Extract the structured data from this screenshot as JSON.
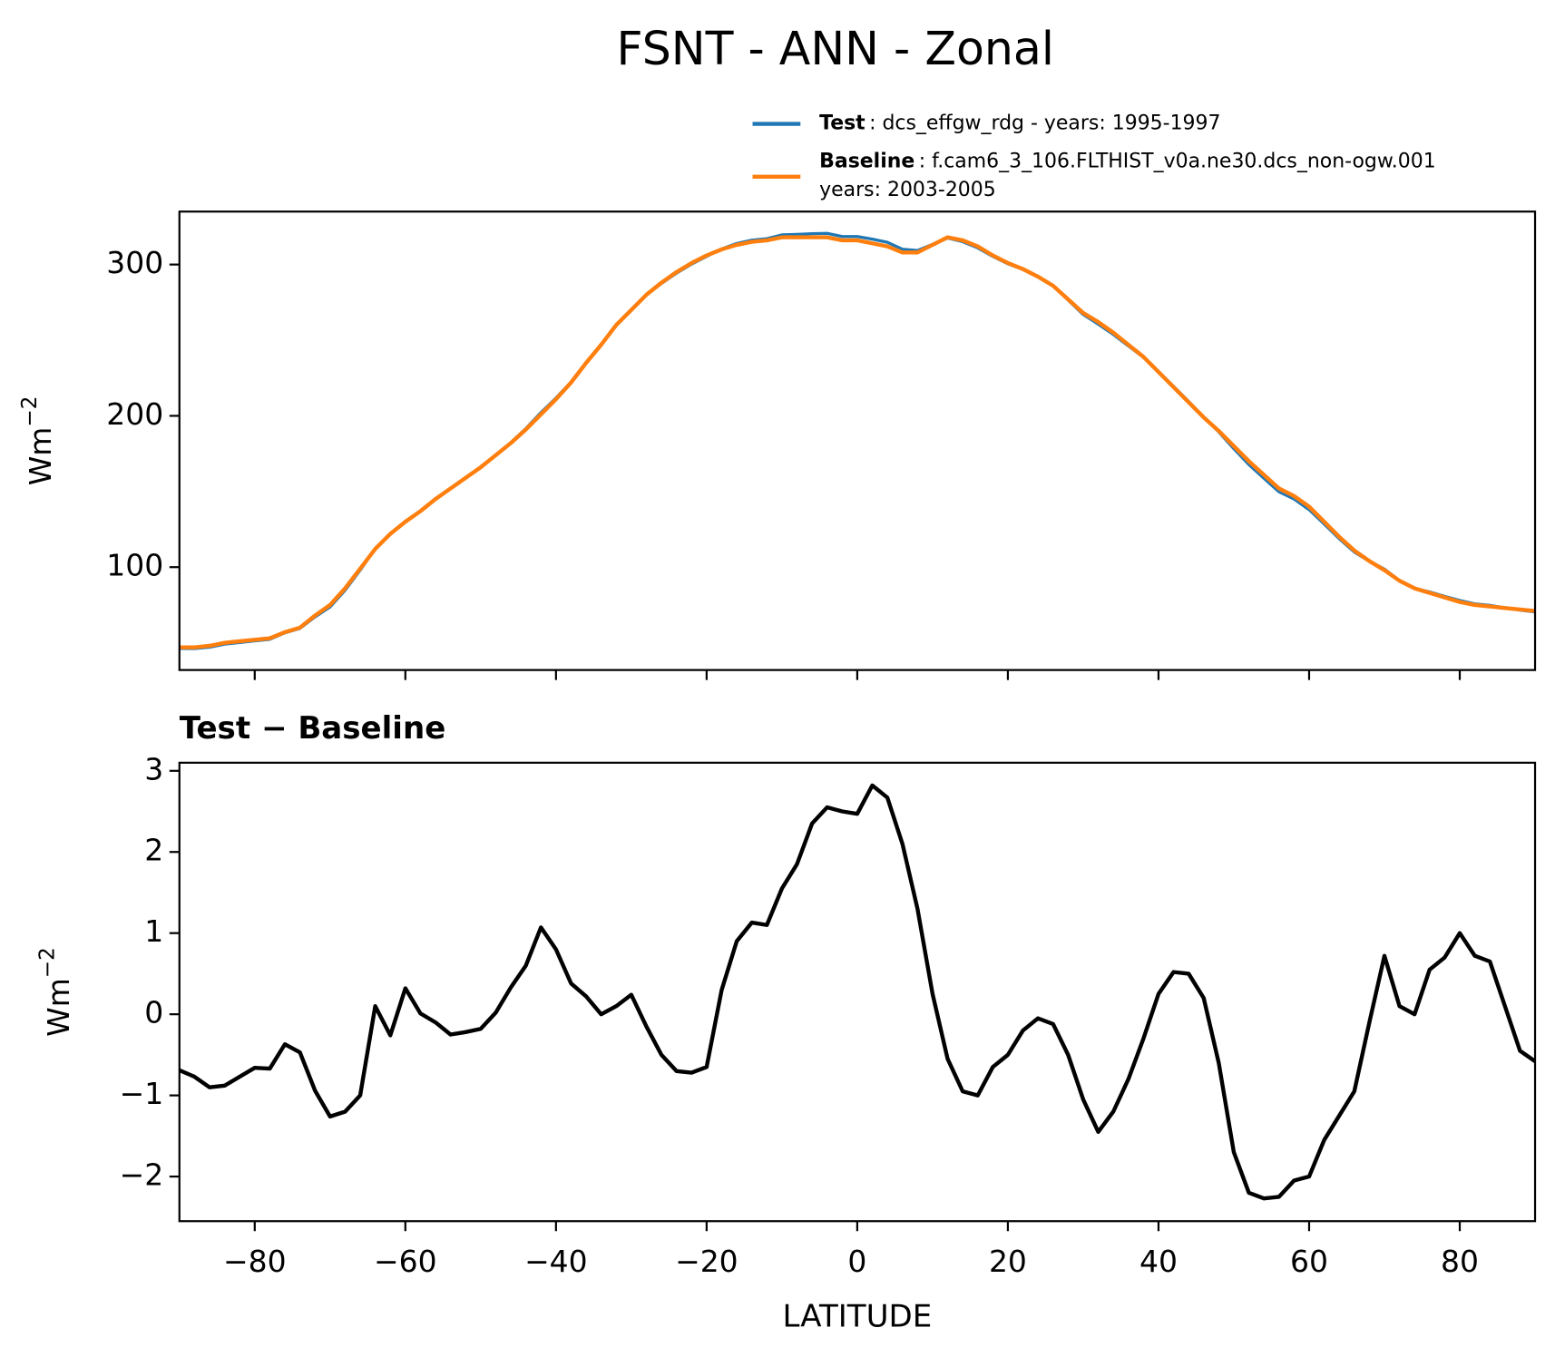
{
  "chart_data": [
    {
      "type": "line",
      "title": "FSNT - ANN - Zonal",
      "ylabel": {
        "base": "Wm",
        "sup": "−2"
      },
      "x": [
        -90,
        -88,
        -86,
        -84,
        -82,
        -80,
        -78,
        -76,
        -74,
        -72,
        -70,
        -68,
        -66,
        -64,
        -62,
        -60,
        -58,
        -56,
        -54,
        -52,
        -50,
        -48,
        -46,
        -44,
        -42,
        -40,
        -38,
        -36,
        -34,
        -32,
        -30,
        -28,
        -26,
        -24,
        -22,
        -20,
        -18,
        -16,
        -14,
        -12,
        -10,
        -8,
        -6,
        -4,
        -2,
        0,
        2,
        4,
        6,
        8,
        10,
        12,
        14,
        16,
        18,
        20,
        22,
        24,
        26,
        28,
        30,
        32,
        34,
        36,
        38,
        40,
        42,
        44,
        46,
        48,
        50,
        52,
        54,
        56,
        58,
        60,
        62,
        64,
        66,
        68,
        70,
        72,
        74,
        76,
        78,
        80,
        82,
        84,
        86,
        88,
        90
      ],
      "series": [
        {
          "name": "Test",
          "description": [
            ": dcs_effgw_rdg - years: 1995-1997"
          ],
          "color": "#1f77b4",
          "values": [
            46.3,
            46.2,
            47.1,
            49.1,
            50.2,
            51.3,
            52.3,
            56.6,
            59.5,
            67.1,
            73.7,
            84.8,
            98,
            112.1,
            121.7,
            130.3,
            137,
            144.9,
            151.8,
            158.8,
            165.8,
            174,
            182.3,
            191.6,
            202.1,
            211.8,
            222.4,
            235.2,
            247,
            260.1,
            270.2,
            279.9,
            287.5,
            294.3,
            300.3,
            305.4,
            310.3,
            313.9,
            316.1,
            317.1,
            319.6,
            319.9,
            320.4,
            320.6,
            318.5,
            318.5,
            316.8,
            314.7,
            310.1,
            309.3,
            313.3,
            317.5,
            315.1,
            311,
            305.4,
            300.5,
            296.8,
            292,
            285.9,
            276.5,
            267,
            260.6,
            253.8,
            246.2,
            238.7,
            229.3,
            219.5,
            209.5,
            199.2,
            189.4,
            178.3,
            167.8,
            158.7,
            149.8,
            145,
            138,
            128.5,
            118.8,
            110,
            103.9,
            98.7,
            91.1,
            86,
            83.6,
            80.7,
            78,
            75.7,
            74.7,
            73.1,
            71.6,
            70.4
          ]
        },
        {
          "name": "Baseline",
          "description": [
            ": f.cam6_3_106.FLTHIST_v0a.ne30.dcs_non-ogw.001",
            "years: 2003-2005"
          ],
          "color": "#ff7f0e",
          "values": [
            47,
            47,
            48,
            50,
            51,
            52,
            53,
            57,
            60,
            68,
            75,
            86,
            99,
            112,
            122,
            130,
            137,
            145,
            152,
            159,
            166,
            174,
            182,
            191,
            201,
            211,
            222,
            235,
            247,
            260,
            270,
            280,
            288,
            295,
            301,
            306,
            310,
            313,
            315,
            316,
            318,
            318,
            318,
            318,
            316,
            316,
            314,
            312,
            308,
            308,
            313,
            318,
            316,
            312,
            306,
            301,
            297,
            292,
            286,
            277,
            268,
            262,
            255,
            247,
            239,
            229,
            219,
            209,
            199,
            190,
            180,
            170,
            161,
            152,
            147,
            140,
            130,
            120,
            111,
            104,
            98,
            91,
            86,
            83,
            80,
            77,
            75,
            74,
            73,
            72,
            71
          ]
        }
      ],
      "xlim": [
        -90,
        90
      ],
      "xticks": [
        -80,
        -60,
        -40,
        -20,
        0,
        20,
        40,
        60,
        80
      ],
      "show_xtick_labels": false,
      "ylim": [
        32,
        335
      ],
      "yticks": [
        100,
        200,
        300
      ]
    },
    {
      "type": "line",
      "title": "Test − Baseline",
      "xlabel": "LATITUDE",
      "ylabel": {
        "base": "Wm",
        "sup": "−2"
      },
      "x": [
        -90,
        -88,
        -86,
        -84,
        -82,
        -80,
        -78,
        -76,
        -74,
        -72,
        -70,
        -68,
        -66,
        -64,
        -62,
        -60,
        -58,
        -56,
        -54,
        -52,
        -50,
        -48,
        -46,
        -44,
        -42,
        -40,
        -38,
        -36,
        -34,
        -32,
        -30,
        -28,
        -26,
        -24,
        -22,
        -20,
        -18,
        -16,
        -14,
        -12,
        -10,
        -8,
        -6,
        -4,
        -2,
        0,
        2,
        4,
        6,
        8,
        10,
        12,
        14,
        16,
        18,
        20,
        22,
        24,
        26,
        28,
        30,
        32,
        34,
        36,
        38,
        40,
        42,
        44,
        46,
        48,
        50,
        52,
        54,
        56,
        58,
        60,
        62,
        64,
        66,
        68,
        70,
        72,
        74,
        76,
        78,
        80,
        82,
        84,
        86,
        88,
        90
      ],
      "series": [
        {
          "color": "#000000",
          "values": [
            -0.69,
            -0.77,
            -0.9,
            -0.88,
            -0.77,
            -0.66,
            -0.67,
            -0.37,
            -0.47,
            -0.94,
            -1.26,
            -1.2,
            -1.0,
            0.1,
            -0.26,
            0.32,
            0.01,
            -0.1,
            -0.25,
            -0.22,
            -0.18,
            0.02,
            0.33,
            0.6,
            1.07,
            0.8,
            0.38,
            0.22,
            0,
            0.1,
            0.24,
            -0.15,
            -0.5,
            -0.7,
            -0.72,
            -0.65,
            0.3,
            0.9,
            1.13,
            1.1,
            1.55,
            1.85,
            2.35,
            2.55,
            2.5,
            2.47,
            2.82,
            2.67,
            2.1,
            1.3,
            0.25,
            -0.55,
            -0.95,
            -1.0,
            -0.65,
            -0.5,
            -0.2,
            -0.05,
            -0.12,
            -0.5,
            -1.05,
            -1.45,
            -1.2,
            -0.8,
            -0.3,
            0.25,
            0.52,
            0.5,
            0.2,
            -0.6,
            -1.7,
            -2.2,
            -2.27,
            -2.25,
            -2.05,
            -2.0,
            -1.55,
            -1.25,
            -0.95,
            -0.1,
            0.72,
            0.1,
            0,
            0.55,
            0.7,
            1.0,
            0.72,
            0.65,
            0.1,
            -0.45,
            -0.58
          ]
        }
      ],
      "xlim": [
        -90,
        90
      ],
      "xticks": [
        {
          "value": -80,
          "label": "−80"
        },
        {
          "value": -60,
          "label": "−60"
        },
        {
          "value": -40,
          "label": "−40"
        },
        {
          "value": -20,
          "label": "−20"
        },
        0,
        20,
        40,
        60,
        80
      ],
      "show_xtick_labels": true,
      "ylim": [
        -2.55,
        3.1
      ],
      "yticks": [
        {
          "value": -2,
          "label": "−2"
        },
        {
          "value": -1,
          "label": "−1"
        },
        0,
        1,
        2,
        3
      ]
    }
  ]
}
